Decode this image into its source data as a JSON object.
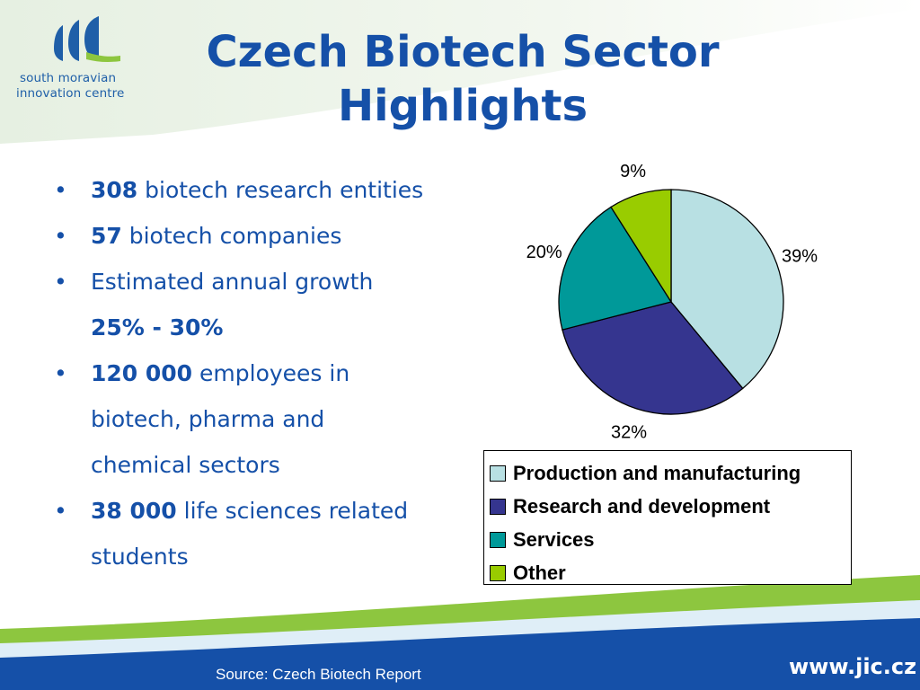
{
  "logo": {
    "line1": "south moravian",
    "line2": "innovation centre",
    "colors": {
      "blue": "#1f5fa8",
      "green": "#8dc63f"
    }
  },
  "title": {
    "line1": "Czech Biotech Sector",
    "line2": "Highlights"
  },
  "bullets": [
    {
      "bold": "308",
      "text": " biotech research entities"
    },
    {
      "bold": "57",
      "text": " biotech companies"
    },
    {
      "bold": "",
      "text": "Estimated annual growth ",
      "bold_after": "25% - 30%"
    },
    {
      "bold": "120 000",
      "text": " employees in biotech, pharma and chemical sectors"
    },
    {
      "bold": "38 000",
      "text": " life sciences related students"
    }
  ],
  "bullet_glyph": "•",
  "chart_data": {
    "type": "pie",
    "title": "",
    "slices": [
      {
        "name": "Production and manufacturing",
        "value": 39,
        "label": "39%",
        "color": "#b8e0e3"
      },
      {
        "name": "Research and development",
        "value": 32,
        "label": "32%",
        "color": "#35358f"
      },
      {
        "name": "Services",
        "value": 20,
        "label": "20%",
        "color": "#009999"
      },
      {
        "name": "Other",
        "value": 9,
        "label": "9%",
        "color": "#99cc00"
      }
    ],
    "legend_position": "bottom-right",
    "start_angle_deg": 0,
    "direction": "clockwise"
  },
  "footer": {
    "source": "Source: Czech Biotech Report",
    "url": "www.jic.cz",
    "band_color": "#1550a8",
    "accent_color": "#8dc63f"
  }
}
